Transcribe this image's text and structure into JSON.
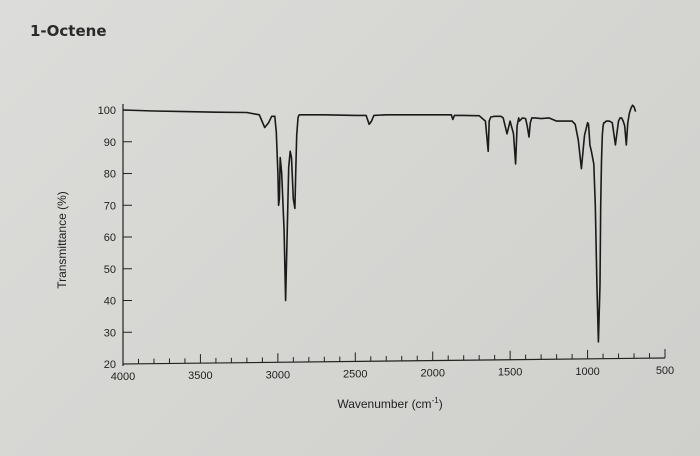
{
  "title": "1-Octene",
  "chart_data": {
    "type": "line",
    "title": "1-Octene",
    "xlabel": "Wavenumber (cm",
    "xlabel_sup": "-1",
    "xlabel_end": ")",
    "ylabel": "Transmittance (%)",
    "xlim": [
      4000,
      500
    ],
    "ylim": [
      20,
      100
    ],
    "x_reversed": true,
    "x_ticks": [
      4000,
      3500,
      3000,
      2500,
      2000,
      1500,
      1000,
      500
    ],
    "y_ticks": [
      20,
      30,
      40,
      50,
      60,
      70,
      80,
      90,
      100
    ],
    "grid": false,
    "series": [
      {
        "color": "#1a1a1a",
        "x": [
          4000,
          3800,
          3600,
          3400,
          3200,
          3120,
          3085,
          3060,
          3040,
          3020,
          3010,
          3000,
          2995,
          2990,
          2985,
          2975,
          2960,
          2950,
          2940,
          2930,
          2920,
          2912,
          2900,
          2890,
          2885,
          2878,
          2870,
          2865,
          2860,
          2850,
          2800,
          2700,
          2500,
          2430,
          2410,
          2395,
          2380,
          2300,
          2100,
          1950,
          1880,
          1870,
          1860,
          1800,
          1720,
          1700,
          1660,
          1642,
          1635,
          1625,
          1600,
          1560,
          1545,
          1520,
          1500,
          1478,
          1465,
          1455,
          1445,
          1440,
          1420,
          1400,
          1390,
          1378,
          1370,
          1360,
          1340,
          1300,
          1250,
          1200,
          1150,
          1100,
          1080,
          1060,
          1040,
          1020,
          1000,
          994,
          990,
          985,
          975,
          960,
          950,
          940,
          930,
          920,
          915,
          910,
          905,
          900,
          895,
          890,
          880,
          860,
          840,
          820,
          800,
          790,
          780,
          770,
          760,
          750,
          740,
          730,
          720,
          710,
          700,
          690
        ],
        "y": [
          100,
          99.7,
          99.5,
          99.3,
          99.2,
          98.5,
          94.5,
          96,
          98,
          98,
          93,
          80,
          70,
          72,
          85,
          80,
          62,
          40,
          60,
          82,
          87,
          85,
          72,
          69,
          80,
          92,
          97.5,
          98.3,
          98.5,
          98.5,
          98.5,
          98.5,
          98.3,
          98.3,
          95.5,
          96.5,
          98.3,
          98.5,
          98.5,
          98.5,
          98.5,
          97,
          98.3,
          98.3,
          98.2,
          98.2,
          96.5,
          87,
          96.5,
          97.8,
          98,
          98,
          97.5,
          92.5,
          96.5,
          92.5,
          83,
          95,
          97.5,
          96.5,
          97.5,
          97.3,
          95,
          91.5,
          96,
          97.5,
          97.5,
          97.3,
          97.5,
          96.5,
          96.5,
          96.5,
          95.5,
          90.5,
          81.5,
          92,
          96,
          95.5,
          93,
          89,
          87,
          83,
          70,
          45,
          27,
          45,
          70,
          84,
          92,
          95,
          96,
          96,
          96.5,
          96.5,
          96,
          89,
          96.5,
          97.5,
          97.5,
          96.5,
          95,
          89,
          96,
          99,
          100.5,
          101.5,
          101,
          99.5
        ]
      }
    ]
  }
}
